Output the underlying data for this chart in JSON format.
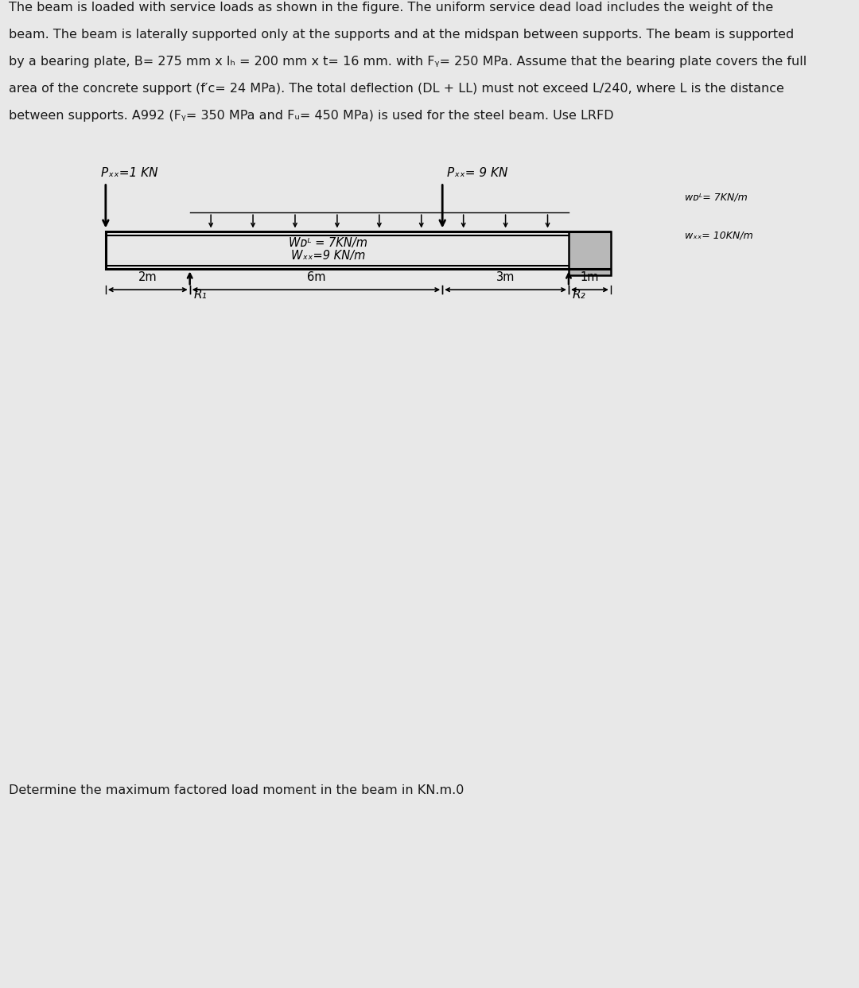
{
  "header_lines": [
    "The beam is loaded with service loads as shown in the figure. The uniform service dead load includes the weight of the",
    "beam. The beam is laterally supported only at the supports and at the midspan between supports. The beam is supported",
    "by a bearing plate, B= 275 mm x lₕ = 200 mm x t= 16 mm. with Fᵧ= 250 MPa. Assume that the bearing plate covers the full",
    "area of the concrete support (f′ᴄ= 24 MPa). The total deflection (DL + LL) must not exceed L/240, where L is the distance",
    "between supports. A992 (Fᵧ= 350 MPa and Fᵤ= 450 MPa) is used for the steel beam. Use LRFD"
  ],
  "footer_text": "Determine the maximum factored load moment in the beam in KN.m.0",
  "PLL_left_label": "Pₓₓ=1 KN",
  "PLL_right_label": "Pₓₓ= 9 KN",
  "WDL_label": "Wᴅᴸ = 7KN/m",
  "WLL_label": "Wₓₓ=9 KN/m",
  "WDL_right_label": "wᴅᴸ= 7KN/m",
  "WLL_right_label": "wₓₓ= 10KN/m",
  "dim_2m": "2m",
  "dim_6m": "6m",
  "dim_3m": "3m",
  "dim_1m": "1m",
  "R1_label": "R₁",
  "R2_label": "R₂",
  "bg_color": "#d0d0d0",
  "outer_bg": "#e8e8e8",
  "beam_color": "#1a1a1a",
  "text_color": "#1a1a1a"
}
